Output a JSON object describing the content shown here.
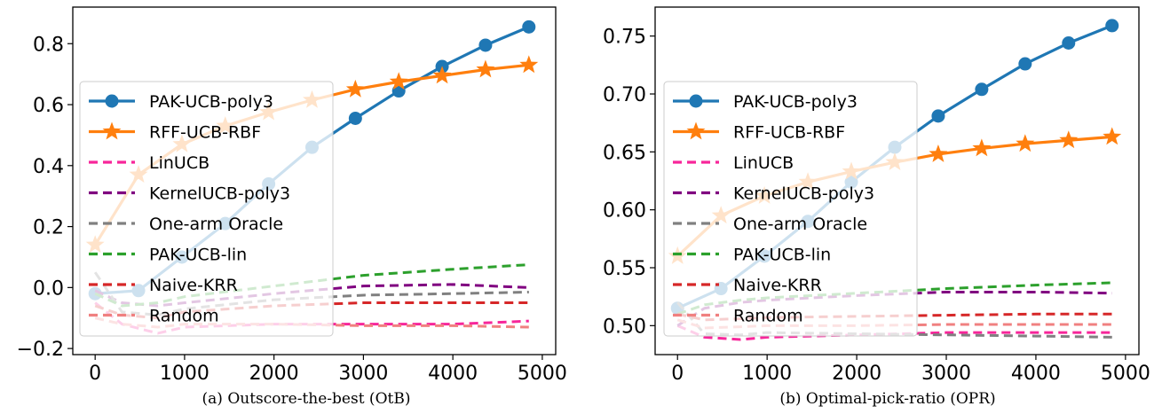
{
  "captions": [
    "(a) Outscore-the-best (OtB)",
    "(b) Optimal-pick-ratio (OPR)"
  ],
  "chart_data": [
    {
      "type": "line",
      "title": "",
      "xlabel": "",
      "ylabel": "",
      "xlim": [
        -250,
        5150
      ],
      "ylim": [
        -0.22,
        0.92
      ],
      "xticks": [
        0,
        1000,
        2000,
        3000,
        4000,
        5000
      ],
      "yticks": [
        -0.2,
        0.0,
        0.2,
        0.4,
        0.6,
        0.8
      ],
      "ytick_labels": [
        "−0.2",
        "0.0",
        "0.2",
        "0.4",
        "0.6",
        "0.8"
      ],
      "legend_position": "center-left",
      "series": [
        {
          "name": "PAK-UCB-poly3",
          "color": "#1f77b4",
          "style": "solid",
          "marker": "circle",
          "x": [
            0,
            485,
            970,
            1455,
            1940,
            2425,
            2910,
            3395,
            3880,
            4365,
            4850
          ],
          "y": [
            -0.02,
            -0.01,
            0.1,
            0.21,
            0.34,
            0.46,
            0.555,
            0.645,
            0.725,
            0.795,
            0.855
          ]
        },
        {
          "name": "RFF-UCB-RBF",
          "color": "#ff7f0e",
          "style": "solid",
          "marker": "star",
          "x": [
            0,
            485,
            970,
            1455,
            1940,
            2425,
            2910,
            3395,
            3880,
            4365,
            4850
          ],
          "y": [
            0.14,
            0.37,
            0.47,
            0.53,
            0.575,
            0.615,
            0.65,
            0.675,
            0.695,
            0.715,
            0.73
          ]
        },
        {
          "name": "LinUCB",
          "color": "#f7269a",
          "style": "dashed",
          "marker": "none",
          "x": [
            0,
            300,
            700,
            1000,
            2000,
            3000,
            4000,
            4850
          ],
          "y": [
            -0.05,
            -0.12,
            -0.15,
            -0.13,
            -0.12,
            -0.12,
            -0.12,
            -0.11
          ]
        },
        {
          "name": "KernelUCB-poly3",
          "color": "#800080",
          "style": "dashed",
          "marker": "none",
          "x": [
            0,
            300,
            700,
            1000,
            2000,
            3000,
            4000,
            4850
          ],
          "y": [
            -0.01,
            -0.05,
            -0.06,
            -0.05,
            -0.02,
            0.005,
            0.01,
            0.0
          ]
        },
        {
          "name": "One-arm Oracle",
          "color": "#808080",
          "style": "dashed",
          "marker": "none",
          "x": [
            0,
            300,
            700,
            1000,
            2000,
            3000,
            4000,
            4850
          ],
          "y": [
            0.05,
            -0.08,
            -0.09,
            -0.07,
            -0.04,
            -0.025,
            -0.02,
            -0.015
          ]
        },
        {
          "name": "PAK-UCB-lin",
          "color": "#2ca02c",
          "style": "dashed",
          "marker": "none",
          "x": [
            0,
            300,
            700,
            1000,
            2000,
            3000,
            4000,
            4850
          ],
          "y": [
            -0.02,
            -0.06,
            -0.05,
            -0.03,
            0.005,
            0.04,
            0.06,
            0.075
          ]
        },
        {
          "name": "Naive-KRR",
          "color": "#d62728",
          "style": "dashed",
          "marker": "none",
          "x": [
            0,
            300,
            700,
            1000,
            2000,
            3000,
            4000,
            4850
          ],
          "y": [
            -0.06,
            -0.09,
            -0.1,
            -0.08,
            -0.06,
            -0.05,
            -0.05,
            -0.05
          ]
        },
        {
          "name": "Random",
          "color": "#f08080",
          "style": "dashed",
          "marker": "none",
          "x": [
            0,
            300,
            700,
            1000,
            2000,
            3000,
            4000,
            4850
          ],
          "y": [
            -0.1,
            -0.12,
            -0.13,
            -0.12,
            -0.12,
            -0.125,
            -0.125,
            -0.13
          ]
        }
      ]
    },
    {
      "type": "line",
      "title": "",
      "xlabel": "",
      "ylabel": "",
      "xlim": [
        -250,
        5150
      ],
      "ylim": [
        0.475,
        0.775
      ],
      "xticks": [
        0,
        1000,
        2000,
        3000,
        4000,
        5000
      ],
      "yticks": [
        0.5,
        0.55,
        0.6,
        0.65,
        0.7,
        0.75
      ],
      "ytick_labels": [
        "0.50",
        "0.55",
        "0.60",
        "0.65",
        "0.70",
        "0.75"
      ],
      "legend_position": "center-left",
      "series": [
        {
          "name": "PAK-UCB-poly3",
          "color": "#1f77b4",
          "style": "solid",
          "marker": "circle",
          "x": [
            0,
            485,
            970,
            1455,
            1940,
            2425,
            2910,
            3395,
            3880,
            4365,
            4850
          ],
          "y": [
            0.515,
            0.532,
            0.56,
            0.59,
            0.624,
            0.654,
            0.681,
            0.704,
            0.726,
            0.744,
            0.759
          ]
        },
        {
          "name": "RFF-UCB-RBF",
          "color": "#ff7f0e",
          "style": "solid",
          "marker": "star",
          "x": [
            0,
            485,
            970,
            1455,
            1940,
            2425,
            2910,
            3395,
            3880,
            4365,
            4850
          ],
          "y": [
            0.56,
            0.595,
            0.612,
            0.624,
            0.633,
            0.641,
            0.648,
            0.653,
            0.657,
            0.66,
            0.663
          ]
        },
        {
          "name": "LinUCB",
          "color": "#f7269a",
          "style": "dashed",
          "marker": "none",
          "x": [
            0,
            300,
            700,
            1000,
            2000,
            3000,
            4000,
            4850
          ],
          "y": [
            0.5,
            0.49,
            0.488,
            0.49,
            0.492,
            0.494,
            0.494,
            0.494
          ]
        },
        {
          "name": "KernelUCB-poly3",
          "color": "#800080",
          "style": "dashed",
          "marker": "none",
          "x": [
            0,
            300,
            700,
            1000,
            2000,
            3000,
            4000,
            4850
          ],
          "y": [
            0.5,
            0.515,
            0.52,
            0.522,
            0.526,
            0.529,
            0.529,
            0.528
          ]
        },
        {
          "name": "One-arm Oracle",
          "color": "#808080",
          "style": "dashed",
          "marker": "none",
          "x": [
            0,
            300,
            700,
            1000,
            2000,
            3000,
            4000,
            4850
          ],
          "y": [
            0.52,
            0.493,
            0.492,
            0.494,
            0.493,
            0.492,
            0.491,
            0.49
          ]
        },
        {
          "name": "PAK-UCB-lin",
          "color": "#2ca02c",
          "style": "dashed",
          "marker": "none",
          "x": [
            0,
            300,
            700,
            1000,
            2000,
            3000,
            4000,
            4850
          ],
          "y": [
            0.51,
            0.518,
            0.522,
            0.524,
            0.528,
            0.532,
            0.535,
            0.537
          ]
        },
        {
          "name": "Naive-KRR",
          "color": "#d62728",
          "style": "dashed",
          "marker": "none",
          "x": [
            0,
            300,
            700,
            1000,
            2000,
            3000,
            4000,
            4850
          ],
          "y": [
            0.51,
            0.505,
            0.506,
            0.507,
            0.508,
            0.509,
            0.51,
            0.51
          ]
        },
        {
          "name": "Random",
          "color": "#f08080",
          "style": "dashed",
          "marker": "none",
          "x": [
            0,
            300,
            700,
            1000,
            2000,
            3000,
            4000,
            4850
          ],
          "y": [
            0.505,
            0.498,
            0.499,
            0.5,
            0.5,
            0.501,
            0.501,
            0.501
          ]
        }
      ]
    }
  ]
}
